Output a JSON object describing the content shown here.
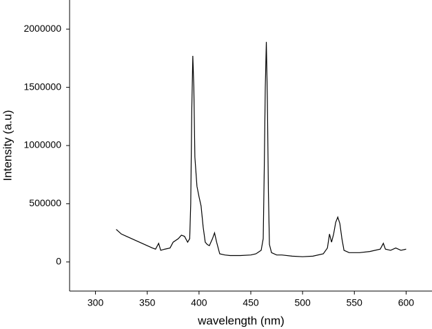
{
  "chart_data": {
    "type": "line",
    "x_label": "wavelength (nm)",
    "y_label": "Intensity (a.u)",
    "xlim": [
      275,
      625
    ],
    "xticks": [
      300,
      350,
      400,
      450,
      500,
      550,
      600
    ],
    "ylim": [
      -250000,
      2250000
    ],
    "yticks": [
      0,
      500000,
      1000000,
      1500000,
      2000000
    ],
    "grid": false,
    "series": [
      {
        "color": "#000000",
        "x": [
          320,
          325,
          330,
          335,
          340,
          345,
          350,
          355,
          358,
          361,
          363,
          367,
          372,
          375,
          380,
          383,
          386,
          389,
          391,
          392,
          393,
          394,
          395,
          396,
          398,
          400,
          402,
          404,
          406,
          408,
          410,
          413,
          415,
          417,
          420,
          425,
          430,
          440,
          450,
          455,
          460,
          462,
          463,
          464,
          465,
          466,
          467,
          468,
          470,
          475,
          480,
          490,
          500,
          510,
          520,
          524,
          526,
          528,
          530,
          532,
          534,
          536,
          538,
          540,
          545,
          555,
          565,
          575,
          578,
          580,
          585,
          590,
          595,
          600
        ],
        "values": [
          280000,
          240000,
          220000,
          200000,
          180000,
          160000,
          140000,
          120000,
          110000,
          160000,
          100000,
          110000,
          120000,
          170000,
          200000,
          230000,
          220000,
          170000,
          200000,
          500000,
          1300000,
          1770000,
          1500000,
          900000,
          650000,
          560000,
          480000,
          300000,
          170000,
          150000,
          140000,
          200000,
          250000,
          170000,
          70000,
          60000,
          55000,
          55000,
          60000,
          70000,
          100000,
          200000,
          800000,
          1500000,
          1890000,
          1400000,
          600000,
          150000,
          80000,
          60000,
          60000,
          50000,
          45000,
          50000,
          70000,
          120000,
          240000,
          170000,
          240000,
          340000,
          385000,
          330000,
          200000,
          100000,
          80000,
          80000,
          90000,
          110000,
          160000,
          110000,
          100000,
          120000,
          100000,
          110000
        ]
      }
    ]
  }
}
